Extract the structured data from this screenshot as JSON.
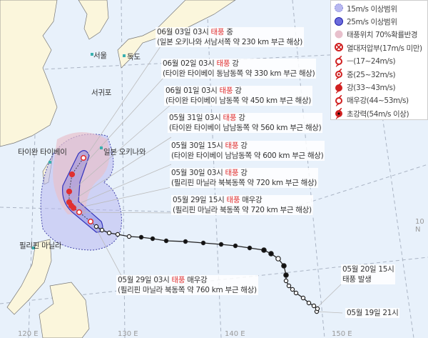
{
  "legend": [
    {
      "icon": "circle-dashed-light-blue-icon",
      "label": "15m/s 이상범위",
      "color": "#b8b8f0"
    },
    {
      "icon": "circle-blue-icon",
      "label": "25m/s 이상범위",
      "color": "#6b6bdc"
    },
    {
      "icon": "circle-pink-icon",
      "label": "태풍위치 70%확률반경",
      "color": "#e8c0cc"
    },
    {
      "icon": "tropical-depression-icon",
      "label": "열대저압부(17m/s 미만)",
      "color": "#d02020"
    },
    {
      "icon": "typhoon-weak-icon",
      "label": "ㅡ(17~24m/s)",
      "color": "#d02020"
    },
    {
      "icon": "typhoon-medium-icon",
      "label": "중(25~32m/s)",
      "color": "#d02020"
    },
    {
      "icon": "typhoon-strong-icon",
      "label": "강(33~43m/s)",
      "color": "#d02020"
    },
    {
      "icon": "typhoon-very-strong-icon",
      "label": "매우강(44~53m/s)",
      "color": "#d02020"
    },
    {
      "icon": "typhoon-super-icon",
      "label": "초강력(54m/s 이상)",
      "color": "#d02020"
    }
  ],
  "forecasts": [
    {
      "time": "06월 03일 03시",
      "kind": "태풍",
      "strength": "중",
      "location": "(일본 오키나와 서남서쪽 약 230 km 부근 해상)"
    },
    {
      "time": "06월 02일 03시",
      "kind": "태풍",
      "strength": "강",
      "location": "(타이완 타이베이 동남동쪽 약 330 km 부근 해상)"
    },
    {
      "time": "06월 01일 03시",
      "kind": "태풍",
      "strength": "강",
      "location": "(타이완 타이베이 남동쪽 약 450 km 부근 해상)"
    },
    {
      "time": "05월 31일 03시",
      "kind": "태풍",
      "strength": "강",
      "location": "(타이완 타이베이 남남동쪽 약 560 km 부근 해상)"
    },
    {
      "time": "05월 30일 15시",
      "kind": "태풍",
      "strength": "강",
      "location": "(타이완 타이베이 남남동쪽 약 600 km 부근 해상)"
    },
    {
      "time": "05월 30일 03시",
      "kind": "태풍",
      "strength": "강",
      "location": "(필리핀 마닐라 북북동쪽 약 720 km 부근 해상)"
    },
    {
      "time": "05월 29일 15시",
      "kind": "태풍",
      "strength": "매우강",
      "location": "(필리핀 마닐라 북동쪽 약 720 km 부근 해상)"
    },
    {
      "time": "05월 29일 03시",
      "kind": "태풍",
      "strength": "매우강",
      "location": "(필리핀 마닐라 북동쪽 약 760 km 부근 해상)"
    }
  ],
  "genesis": {
    "time": "05월 20일 15시",
    "text": "태풍 발생"
  },
  "start": {
    "time": "05월 19일 21시"
  },
  "places": {
    "seoul": "서울",
    "dokdo": "독도",
    "seogwipo": "서귀포",
    "taipei": "타이완 타이베이",
    "okinawa": "일본 오키나와",
    "manila": "필리핀 마닐라"
  },
  "ticks": {
    "lon120": "120 E",
    "lon130": "130 E",
    "lon140": "140 E",
    "lon150": "150 E",
    "lat10": "10 N"
  },
  "colors": {
    "sea": "#e8f1fb",
    "land": "#fbf6dc",
    "track_forecast": "#e03030",
    "track_past": "#222222"
  }
}
